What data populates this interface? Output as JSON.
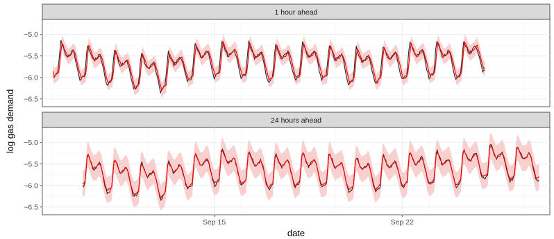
{
  "chart_data": {
    "type": "line",
    "xlabel": "date",
    "ylabel": "log gas demand",
    "x_ticks": [
      "Sep 15",
      "Sep 22"
    ],
    "y_ticks": [
      -6.5,
      -6.0,
      -5.5,
      -5.0
    ],
    "ylim": [
      -6.68,
      -4.65
    ],
    "xlim_days": [
      8.6,
      27.5
    ],
    "x_tick_days": [
      15,
      22
    ],
    "colors": {
      "actual": "#2b2b2b",
      "forecast": "#ff0000",
      "interval": "#f8c8c8"
    },
    "band_halfwidth": [
      0.18,
      0.3
    ],
    "panels": [
      {
        "strip_label": "1 hour ahead",
        "x_start_day": 9.0,
        "x_end_day": 25.1,
        "lag_days": 0.04,
        "interval_halfwidth": 0.18
      },
      {
        "strip_label": "24 hours ahead",
        "x_start_day": 10.1,
        "x_end_day": 27.1,
        "lag_days": 0.0,
        "interval_halfwidth": 0.3
      }
    ],
    "daily_level": [
      -5.45,
      -5.5,
      -5.62,
      -5.72,
      -5.78,
      -5.55,
      -5.45,
      -5.45,
      -5.55,
      -5.5,
      -5.5,
      -5.6,
      -5.6,
      -5.5,
      -5.45,
      -5.5,
      -5.3,
      -5.35,
      -5.35
    ],
    "daily_level_start_day": 9
  }
}
